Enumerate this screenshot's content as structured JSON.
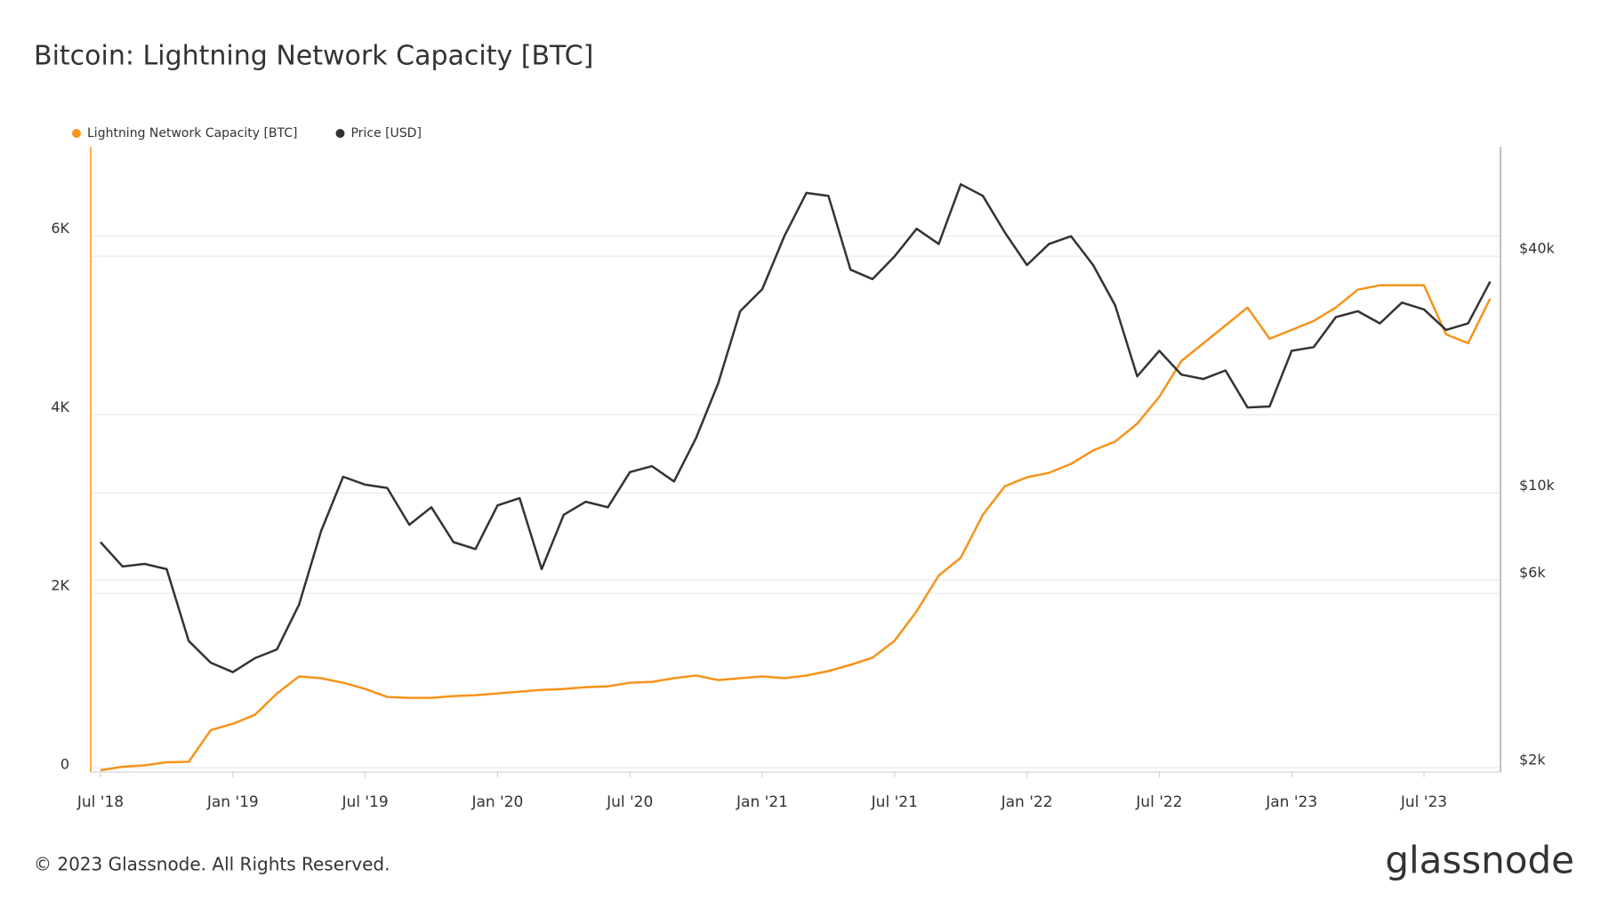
{
  "chart_data": {
    "type": "line",
    "title": "Bitcoin: Lightning Network Capacity [BTC]",
    "footer": "© 2023 Glassnode. All Rights Reserved.",
    "brand": "glassnode",
    "x": [
      "2018-07",
      "2018-08",
      "2018-09",
      "2018-10",
      "2018-11",
      "2018-12",
      "2019-01",
      "2019-02",
      "2019-03",
      "2019-04",
      "2019-05",
      "2019-06",
      "2019-07",
      "2019-08",
      "2019-09",
      "2019-10",
      "2019-11",
      "2019-12",
      "2020-01",
      "2020-02",
      "2020-03",
      "2020-04",
      "2020-05",
      "2020-06",
      "2020-07",
      "2020-08",
      "2020-09",
      "2020-10",
      "2020-11",
      "2020-12",
      "2021-01",
      "2021-02",
      "2021-03",
      "2021-04",
      "2021-05",
      "2021-06",
      "2021-07",
      "2021-08",
      "2021-09",
      "2021-10",
      "2021-11",
      "2021-12",
      "2022-01",
      "2022-02",
      "2022-03",
      "2022-04",
      "2022-05",
      "2022-06",
      "2022-07",
      "2022-08",
      "2022-09",
      "2022-10",
      "2022-11",
      "2022-12",
      "2023-01",
      "2023-02",
      "2023-03",
      "2023-04",
      "2023-05",
      "2023-06",
      "2023-07",
      "2023-08",
      "2023-09",
      "2023-10"
    ],
    "series": [
      {
        "name": "Lightning Network Capacity [BTC]",
        "color": "#f7931a",
        "axis": "y",
        "values": [
          20,
          60,
          75,
          110,
          115,
          470,
          540,
          640,
          880,
          1070,
          1050,
          1000,
          930,
          840,
          830,
          830,
          850,
          860,
          880,
          900,
          920,
          930,
          950,
          960,
          1000,
          1010,
          1050,
          1080,
          1030,
          1050,
          1070,
          1050,
          1080,
          1130,
          1200,
          1280,
          1470,
          1800,
          2200,
          2400,
          2880,
          3200,
          3300,
          3350,
          3450,
          3600,
          3700,
          3900,
          4200,
          4600,
          4800,
          5000,
          5200,
          4850,
          4950,
          5050,
          5200,
          5400,
          5450,
          5450,
          5450,
          4900,
          4800,
          5300
        ]
      },
      {
        "name": "Price [USD]",
        "color": "#333333",
        "axis": "y2",
        "values": [
          7500,
          6500,
          6600,
          6400,
          4200,
          3700,
          3500,
          3800,
          4000,
          5200,
          8000,
          11000,
          10500,
          10300,
          8300,
          9200,
          7500,
          7200,
          9300,
          9700,
          6400,
          8800,
          9500,
          9200,
          11300,
          11700,
          10700,
          13800,
          19000,
          29000,
          33000,
          45000,
          58000,
          57000,
          37000,
          35000,
          40000,
          47000,
          43000,
          61000,
          57000,
          46000,
          38000,
          43000,
          45000,
          38000,
          30000,
          19800,
          23000,
          20000,
          19500,
          20500,
          16500,
          16600,
          23000,
          23500,
          28000,
          29000,
          27000,
          30500,
          29300,
          26000,
          27000,
          34500
        ]
      }
    ],
    "xticks": [
      {
        "value": "2018-07",
        "label": "Jul '18"
      },
      {
        "value": "2019-01",
        "label": "Jan '19"
      },
      {
        "value": "2019-07",
        "label": "Jul '19"
      },
      {
        "value": "2020-01",
        "label": "Jan '20"
      },
      {
        "value": "2020-07",
        "label": "Jul '20"
      },
      {
        "value": "2021-01",
        "label": "Jan '21"
      },
      {
        "value": "2021-07",
        "label": "Jul '21"
      },
      {
        "value": "2022-01",
        "label": "Jan '22"
      },
      {
        "value": "2022-07",
        "label": "Jul '22"
      },
      {
        "value": "2023-01",
        "label": "Jan '23"
      },
      {
        "value": "2023-07",
        "label": "Jul '23"
      }
    ],
    "ylim": [
      0,
      7000
    ],
    "yticks": [
      0,
      {
        "value": 2000,
        "label": "2K"
      },
      {
        "value": 4000,
        "label": "4K"
      },
      {
        "value": 6000,
        "label": "6K"
      }
    ],
    "y2lim": [
      1950,
      76000
    ],
    "y2log": true,
    "y2ticks": [
      {
        "value": 2000,
        "label": "$2k"
      },
      {
        "value": 6000,
        "label": "$6k"
      },
      {
        "value": 10000,
        "label": "$10k"
      },
      {
        "value": 40000,
        "label": "$40k"
      }
    ],
    "grid": true
  }
}
